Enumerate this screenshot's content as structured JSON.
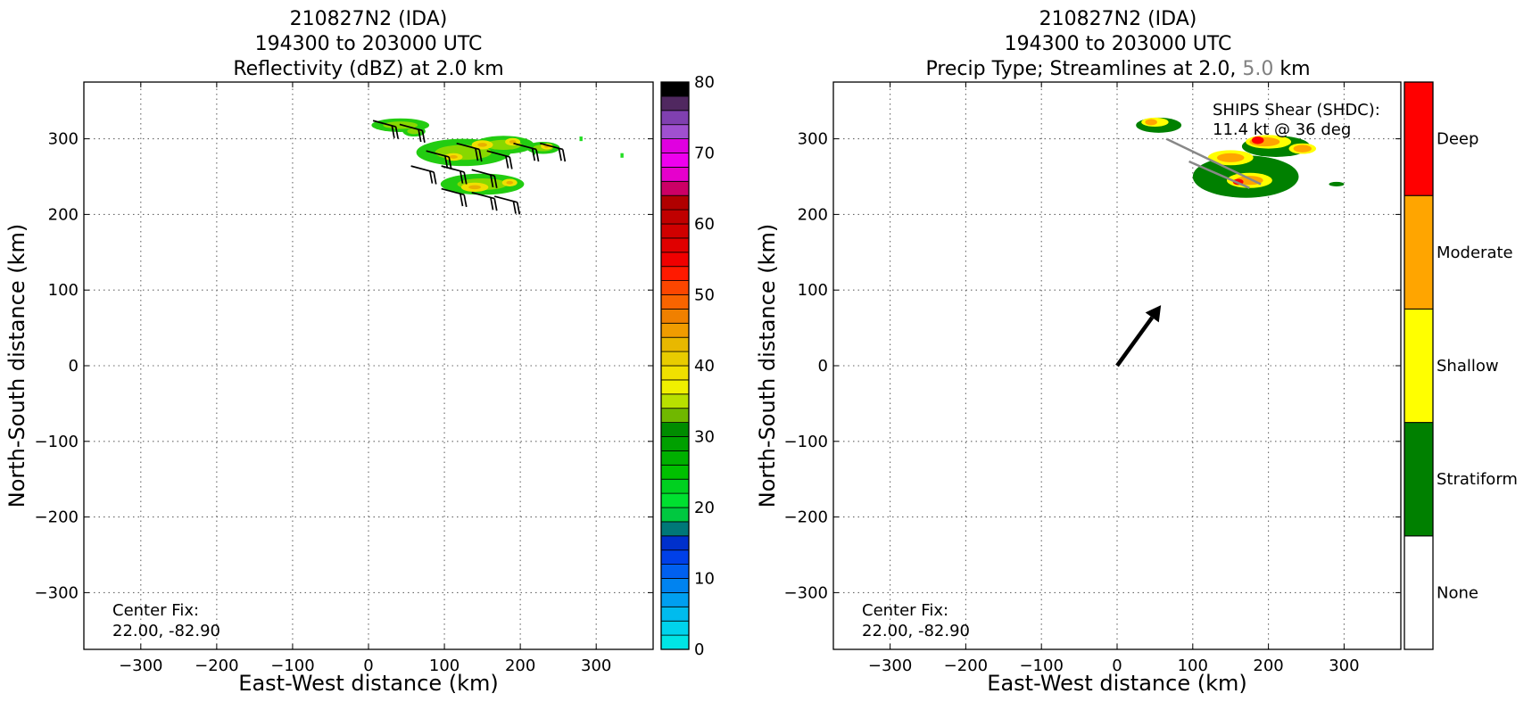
{
  "chart_data": [
    {
      "type": "heatmap",
      "title_lines": [
        "210827N2 (IDA)",
        "194300 to 203000 UTC",
        "Reflectivity (dBZ) at 2.0 km"
      ],
      "xlabel": "East-West distance (km)",
      "ylabel": "North-South distance (km)",
      "xlim": [
        -375,
        375
      ],
      "ylim": [
        -375,
        375
      ],
      "xticks": [
        -300,
        -200,
        -100,
        0,
        100,
        200,
        300
      ],
      "yticks": [
        -300,
        -200,
        -100,
        0,
        100,
        200,
        300
      ],
      "x_tick_labels": [
        "−300",
        "−200",
        "−100",
        "0",
        "100",
        "200",
        "300"
      ],
      "y_tick_labels": [
        "−300",
        "−200",
        "−100",
        "0",
        "100",
        "200",
        "300"
      ],
      "grid": true,
      "annotation_lines": [
        "Center Fix:",
        "22.00, -82.90"
      ],
      "colorbar": {
        "min": 0,
        "max": 80,
        "ticks": [
          0,
          10,
          20,
          30,
          40,
          50,
          60,
          70,
          80
        ],
        "tick_labels": [
          "0",
          "10",
          "20",
          "30",
          "40",
          "50",
          "60",
          "70",
          "80"
        ],
        "colors": [
          "#00e5e5",
          "#00d3ec",
          "#00bbee",
          "#009ff0",
          "#0083f0",
          "#0060f0",
          "#0040e8",
          "#0030cc",
          "#007878",
          "#00c840",
          "#00e030",
          "#00d020",
          "#00c000",
          "#00b000",
          "#00a000",
          "#008c00",
          "#70b800",
          "#b8e000",
          "#f0f000",
          "#f0e000",
          "#e8cc00",
          "#e8b800",
          "#f09c00",
          "#f08000",
          "#f86400",
          "#fc4600",
          "#ff1a00",
          "#f00000",
          "#e00000",
          "#d00000",
          "#c00000",
          "#b00000",
          "#cc0066",
          "#e600cc",
          "#ee00ee",
          "#e000e0",
          "#a050d0",
          "#8040b0",
          "#502860",
          "#000000"
        ]
      },
      "echo_blobs": [
        {
          "x": 42,
          "y": 318,
          "rx": 38,
          "ry": 9
        },
        {
          "x": 125,
          "y": 282,
          "rx": 62,
          "ry": 18
        },
        {
          "x": 178,
          "y": 292,
          "rx": 40,
          "ry": 12
        },
        {
          "x": 150,
          "y": 240,
          "rx": 55,
          "ry": 14
        },
        {
          "x": 230,
          "y": 288,
          "rx": 22,
          "ry": 8
        },
        {
          "x": 60,
          "y": 310,
          "rx": 15,
          "ry": 7
        }
      ],
      "cores": [
        {
          "x": 112,
          "y": 276,
          "rx": 12,
          "ry": 5
        },
        {
          "x": 150,
          "y": 292,
          "rx": 14,
          "ry": 6
        },
        {
          "x": 190,
          "y": 296,
          "rx": 10,
          "ry": 5
        },
        {
          "x": 140,
          "y": 236,
          "rx": 18,
          "ry": 6
        },
        {
          "x": 186,
          "y": 242,
          "rx": 10,
          "ry": 5
        },
        {
          "x": 235,
          "y": 290,
          "rx": 8,
          "ry": 4
        }
      ],
      "scatter_pixels": [
        {
          "x": 280,
          "y": 300
        },
        {
          "x": 334,
          "y": 278
        },
        {
          "x": 218,
          "y": 282
        }
      ],
      "barbs": [
        {
          "x": 30,
          "y": 320
        },
        {
          "x": 65,
          "y": 315
        },
        {
          "x": 100,
          "y": 280
        },
        {
          "x": 140,
          "y": 290
        },
        {
          "x": 180,
          "y": 280
        },
        {
          "x": 215,
          "y": 290
        },
        {
          "x": 250,
          "y": 290
        },
        {
          "x": 80,
          "y": 260
        },
        {
          "x": 120,
          "y": 260
        },
        {
          "x": 160,
          "y": 255
        },
        {
          "x": 120,
          "y": 230
        },
        {
          "x": 160,
          "y": 225
        },
        {
          "x": 190,
          "y": 220
        }
      ]
    },
    {
      "type": "heatmap",
      "title_lines": [
        "210827N2 (IDA)",
        "194300 to 203000 UTC"
      ],
      "title_line3_parts": [
        "Precip Type; Streamlines at 2.0, ",
        "5.0",
        " km"
      ],
      "title_line3_colors": [
        "#000000",
        "#808080",
        "#000000"
      ],
      "xlabel": "East-West distance (km)",
      "ylabel": "North-South distance (km)",
      "xlim": [
        -375,
        375
      ],
      "ylim": [
        -375,
        375
      ],
      "xticks": [
        -300,
        -200,
        -100,
        0,
        100,
        200,
        300
      ],
      "yticks": [
        -300,
        -200,
        -100,
        0,
        100,
        200,
        300
      ],
      "x_tick_labels": [
        "−300",
        "−200",
        "−100",
        "0",
        "100",
        "200",
        "300"
      ],
      "y_tick_labels": [
        "−300",
        "−200",
        "−100",
        "0",
        "100",
        "200",
        "300"
      ],
      "grid": true,
      "annotation_lines": [
        "Center Fix:",
        "22.00, -82.90"
      ],
      "shear_text_lines": [
        "SHIPS Shear (SHDC):",
        "11.4 kt @ 36 deg"
      ],
      "shear_vector": {
        "speed_kt": 11.4,
        "direction_deg": 36,
        "x0": 0,
        "y0": 0,
        "x1": 58,
        "y1": 80
      },
      "colorbar": {
        "categories": [
          "None",
          "Stratiform",
          "Shallow",
          "Moderate",
          "Deep"
        ],
        "colors": [
          "#ffffff",
          "#008000",
          "#ffff00",
          "#ffa500",
          "#ff0000"
        ]
      },
      "strat_blobs": [
        {
          "x": 55,
          "y": 318,
          "rx": 30,
          "ry": 10
        },
        {
          "x": 170,
          "y": 250,
          "rx": 70,
          "ry": 28
        },
        {
          "x": 210,
          "y": 290,
          "rx": 45,
          "ry": 14
        },
        {
          "x": 290,
          "y": 240,
          "rx": 10,
          "ry": 3
        }
      ],
      "shallow_blobs": [
        {
          "x": 50,
          "y": 322,
          "rx": 18,
          "ry": 6
        },
        {
          "x": 150,
          "y": 275,
          "rx": 30,
          "ry": 10
        },
        {
          "x": 200,
          "y": 296,
          "rx": 30,
          "ry": 9
        },
        {
          "x": 245,
          "y": 287,
          "rx": 18,
          "ry": 7
        },
        {
          "x": 175,
          "y": 245,
          "rx": 30,
          "ry": 10
        }
      ],
      "moderate_blobs": [
        {
          "x": 150,
          "y": 275,
          "rx": 18,
          "ry": 6
        },
        {
          "x": 195,
          "y": 296,
          "rx": 20,
          "ry": 6
        },
        {
          "x": 245,
          "y": 287,
          "rx": 12,
          "ry": 5
        },
        {
          "x": 175,
          "y": 245,
          "rx": 18,
          "ry": 6
        },
        {
          "x": 45,
          "y": 322,
          "rx": 8,
          "ry": 4
        }
      ],
      "deep_blobs": [
        {
          "x": 186,
          "y": 298,
          "rx": 8,
          "ry": 5
        },
        {
          "x": 160,
          "y": 243,
          "rx": 7,
          "ry": 4
        }
      ],
      "streamlines": [
        {
          "x0": 65,
          "y0": 300,
          "x1": 190,
          "y1": 240
        },
        {
          "x0": 95,
          "y0": 270,
          "x1": 175,
          "y1": 235
        }
      ]
    }
  ]
}
